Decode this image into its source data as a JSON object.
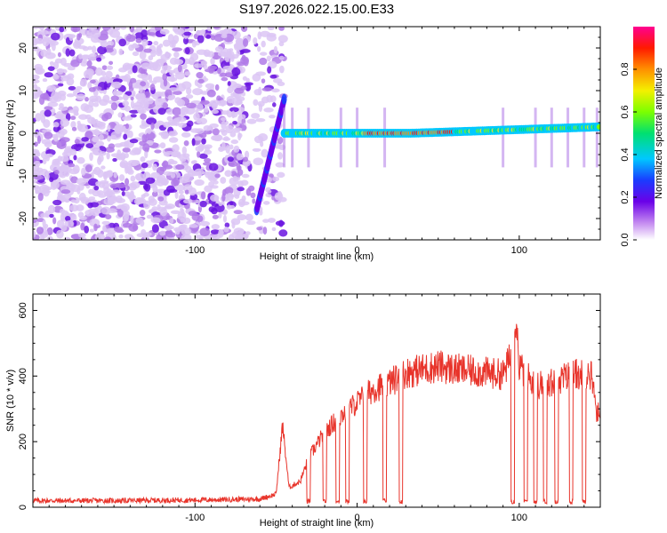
{
  "title": "S197.2026.022.15.00.E33",
  "chart_data": [
    {
      "type": "heatmap",
      "xlabel": "Height of straight line (km)",
      "ylabel": "Frequency (Hz)",
      "xlim": [
        -200,
        150
      ],
      "ylim": [
        -25,
        25
      ],
      "xticks": [
        -100,
        0,
        100
      ],
      "xtick_labels": [
        "-100",
        "0",
        "100"
      ],
      "yticks": [
        -20,
        -10,
        0,
        10,
        20
      ],
      "ytick_labels": [
        "-20",
        "-10",
        "0",
        "10",
        "20"
      ],
      "colorbar": {
        "label": "Normalized spectral amplitude",
        "range": [
          0,
          1
        ],
        "ticks": [
          0.0,
          0.2,
          0.4,
          0.6,
          0.8
        ],
        "tick_labels": [
          "0.0",
          "0.2",
          "0.4",
          "0.6",
          "0.8"
        ],
        "colormap": "rainbow (white-violet-blue-cyan-green-yellow-red-magenta)"
      },
      "features": {
        "noise_region_x": [
          -200,
          -45
        ],
        "signal_track_frequency_hz": 0,
        "signal_track_x": [
          -45,
          150
        ],
        "signal_track_end_frequency_hz": 1.5,
        "chirp_feature_x": [
          -62,
          -45
        ],
        "chirp_feature_frequency_hz": [
          -18,
          8
        ]
      }
    },
    {
      "type": "line",
      "xlabel": "Height of straight line (km)",
      "ylabel": "SNR (10 * v/v)",
      "xlim": [
        -200,
        150
      ],
      "ylim": [
        0,
        650
      ],
      "xticks": [
        -100,
        0,
        100
      ],
      "xtick_labels": [
        "-100",
        "0",
        "100"
      ],
      "yticks": [
        0,
        200,
        400,
        600
      ],
      "ytick_labels": [
        "0",
        "200",
        "400",
        "600"
      ],
      "series": [
        {
          "name": "SNR",
          "color": "#e8342b",
          "x": [
            -200,
            -150,
            -100,
            -60,
            -50,
            -46,
            -42,
            -35,
            -30,
            -20,
            -10,
            0,
            10,
            20,
            30,
            40,
            50,
            60,
            70,
            80,
            90,
            95,
            98,
            100,
            105,
            110,
            120,
            130,
            140,
            145,
            148,
            150
          ],
          "y": [
            20,
            20,
            22,
            25,
            40,
            250,
            60,
            80,
            150,
            230,
            280,
            320,
            360,
            380,
            410,
            420,
            430,
            420,
            415,
            410,
            405,
            460,
            580,
            430,
            400,
            370,
            380,
            400,
            410,
            400,
            280,
            300
          ]
        }
      ],
      "dropouts_x": [
        -30,
        -20,
        -12,
        -6,
        5,
        17,
        27,
        96,
        104,
        110,
        116,
        123,
        132,
        140
      ]
    }
  ]
}
